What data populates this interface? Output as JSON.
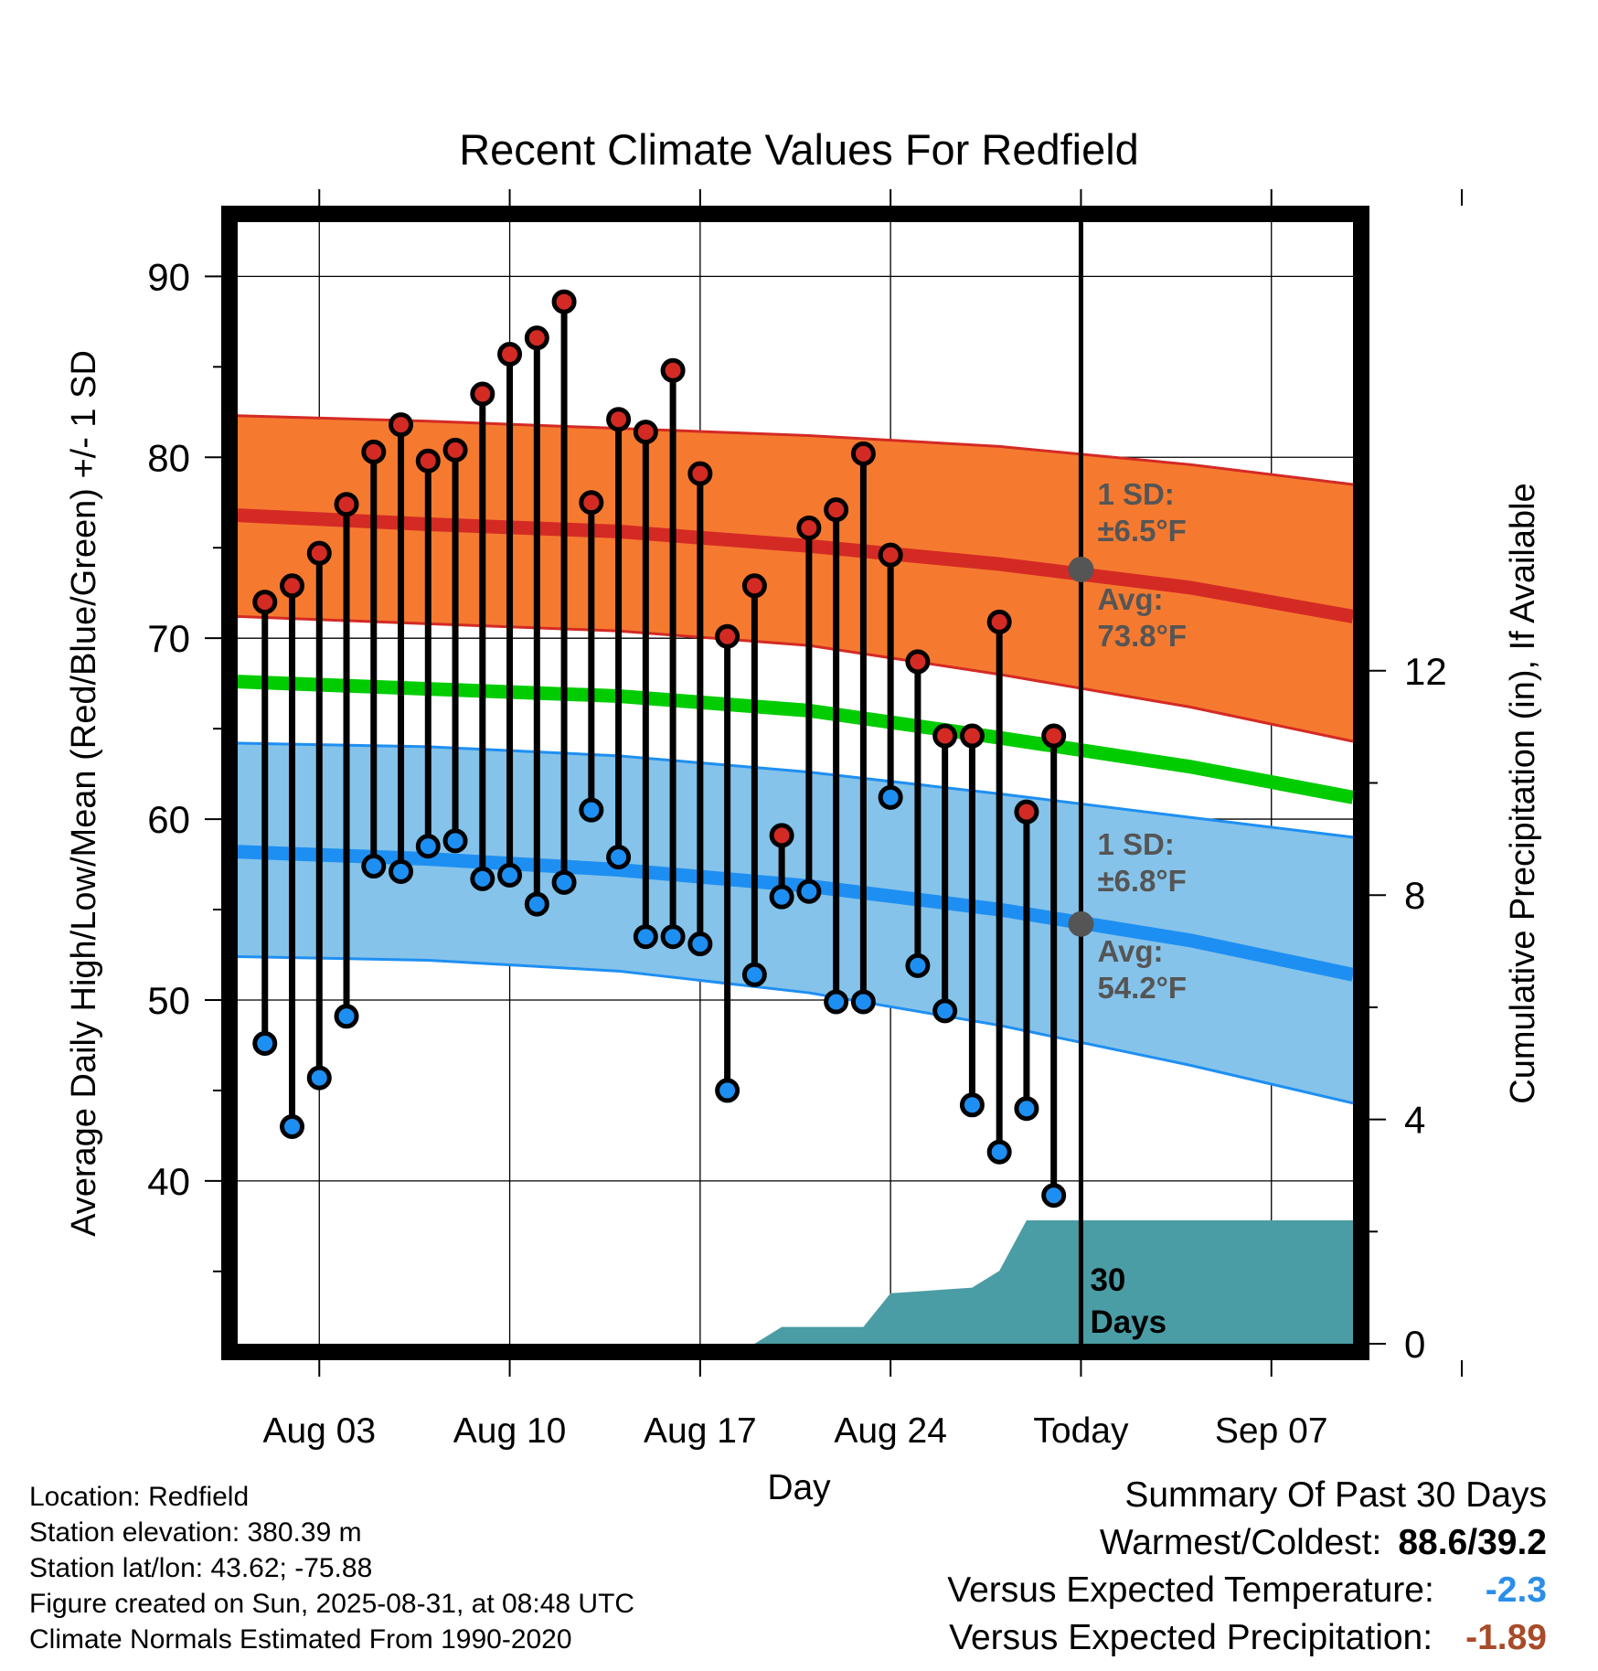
{
  "colors": {
    "high": "#d42a24",
    "low": "#1e8ff2",
    "band_high_fill": "#f57a30",
    "band_high_line": "#d42a24",
    "band_low_fill": "#85c3ea",
    "band_low_line": "#1e8ff2",
    "mean": "#00cc00",
    "precip": "#4a9da4",
    "today_marker": "#555555",
    "annotation": "#555555",
    "versus_temp": "#2b8ee8",
    "versus_precip": "#a84b28"
  },
  "chart_data": {
    "type": "line",
    "title": "Recent Climate Values For Redfield",
    "xlabel": "Day",
    "ylabel": "Average Daily High/Low/Mean (Red/Blue/Green) +/- 1 SD",
    "y2label": "Cumulative Precipitation (in), If Available",
    "xlim": [
      "2025-07-31",
      "2025-09-10"
    ],
    "ylim": [
      31,
      93
    ],
    "y2lim": [
      0,
      20
    ],
    "yticks": [
      40,
      50,
      60,
      70,
      80,
      90
    ],
    "y2ticks": [
      0,
      4,
      8,
      12
    ],
    "xticks": [
      {
        "date": "2025-08-03",
        "label": "Aug 03"
      },
      {
        "date": "2025-08-10",
        "label": "Aug 10"
      },
      {
        "date": "2025-08-17",
        "label": "Aug 17"
      },
      {
        "date": "2025-08-24",
        "label": "Aug 24"
      },
      {
        "date": "2025-08-31",
        "label": "Today"
      },
      {
        "date": "2025-09-07",
        "label": "Sep 07"
      }
    ],
    "grid": true,
    "today": "2025-08-31",
    "dates": [
      "2025-08-01",
      "2025-08-02",
      "2025-08-03",
      "2025-08-04",
      "2025-08-05",
      "2025-08-06",
      "2025-08-07",
      "2025-08-08",
      "2025-08-09",
      "2025-08-10",
      "2025-08-11",
      "2025-08-12",
      "2025-08-13",
      "2025-08-14",
      "2025-08-15",
      "2025-08-16",
      "2025-08-17",
      "2025-08-18",
      "2025-08-19",
      "2025-08-20",
      "2025-08-21",
      "2025-08-22",
      "2025-08-23",
      "2025-08-24",
      "2025-08-25",
      "2025-08-26",
      "2025-08-27",
      "2025-08-28",
      "2025-08-29",
      "2025-08-30"
    ],
    "daily_high": [
      72.0,
      72.9,
      74.7,
      77.4,
      80.3,
      81.8,
      79.8,
      80.4,
      83.5,
      85.7,
      86.6,
      88.6,
      77.5,
      82.1,
      81.4,
      84.8,
      79.1,
      70.1,
      72.9,
      59.1,
      76.1,
      77.1,
      80.2,
      74.6,
      68.7,
      64.6,
      64.6,
      70.9,
      60.4,
      64.6
    ],
    "daily_low": [
      47.6,
      43.0,
      45.7,
      49.1,
      57.4,
      57.1,
      58.5,
      58.8,
      56.7,
      56.9,
      55.3,
      56.5,
      60.5,
      57.9,
      53.5,
      53.5,
      53.1,
      45.0,
      51.4,
      55.7,
      56.0,
      49.9,
      49.9,
      61.2,
      51.9,
      49.4,
      44.2,
      41.6,
      44.0,
      39.2
    ],
    "normal_x": [
      "2025-07-31",
      "2025-08-07",
      "2025-08-14",
      "2025-08-21",
      "2025-08-28",
      "2025-09-04",
      "2025-09-10"
    ],
    "normal_high": [
      76.8,
      76.3,
      75.9,
      75.1,
      74.1,
      72.8,
      71.2
    ],
    "normal_high_upper": [
      82.3,
      82.0,
      81.6,
      81.2,
      80.6,
      79.6,
      78.5
    ],
    "normal_high_lower": [
      71.2,
      70.8,
      70.4,
      69.6,
      68.0,
      66.2,
      64.3
    ],
    "normal_low": [
      58.2,
      57.8,
      57.2,
      56.3,
      55.0,
      53.3,
      51.4
    ],
    "normal_low_upper": [
      64.2,
      64.0,
      63.5,
      62.6,
      61.4,
      60.1,
      59.0
    ],
    "normal_low_lower": [
      52.4,
      52.2,
      51.6,
      50.4,
      48.6,
      46.4,
      44.3
    ],
    "normal_mean": [
      67.6,
      67.2,
      66.8,
      66.0,
      64.5,
      62.9,
      61.2
    ],
    "precip_x": [
      "2025-08-19",
      "2025-08-20",
      "2025-08-23",
      "2025-08-24",
      "2025-08-27",
      "2025-08-28",
      "2025-08-29",
      "2025-09-10"
    ],
    "precip_cum": [
      0.0,
      0.3,
      0.3,
      0.9,
      1.0,
      1.3,
      2.2,
      2.2
    ],
    "annotations": {
      "high_sd_label": "1 SD:",
      "high_sd_value": "±6.5°F",
      "high_avg_label": "Avg:",
      "high_avg_value": "73.8°F",
      "high_avg": 73.8,
      "low_sd_label": "1 SD:",
      "low_sd_value": "±6.8°F",
      "low_avg_label": "Avg:",
      "low_avg_value": "54.2°F",
      "low_avg": 54.2,
      "precip_label_1": "30",
      "precip_label_2": "Days"
    }
  },
  "footer": {
    "location": "Location: Redfield",
    "elevation": "Station elevation: 380.39 m",
    "latlon": "Station lat/lon: 43.62; -75.88",
    "created": "Figure created on Sun, 2025-08-31, at 08:48 UTC",
    "normals": "Climate Normals Estimated From 1990-2020"
  },
  "summary": {
    "title": "Summary Of Past 30 Days",
    "warm_cold_label": "Warmest/Coldest:",
    "warm_cold_value": "88.6/39.2",
    "temp_label": "Versus Expected Temperature:",
    "temp_value": "-2.3",
    "precip_label": "Versus Expected Precipitation:",
    "precip_value": "-1.89"
  }
}
